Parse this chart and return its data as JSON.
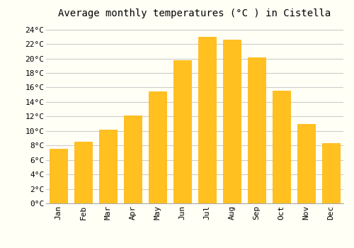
{
  "title": "Average monthly temperatures (°C ) in Cistella",
  "months": [
    "Jan",
    "Feb",
    "Mar",
    "Apr",
    "May",
    "Jun",
    "Jul",
    "Aug",
    "Sep",
    "Oct",
    "Nov",
    "Dec"
  ],
  "values": [
    7.5,
    8.5,
    10.2,
    12.1,
    15.5,
    19.8,
    23.0,
    22.6,
    20.2,
    15.6,
    11.0,
    8.3
  ],
  "bar_color": "#FFC020",
  "bar_edge_color": "#FFB000",
  "background_color": "#FFFFF5",
  "grid_color": "#CCCCCC",
  "ylim": [
    0,
    25
  ],
  "ytick_step": 2,
  "title_fontsize": 10,
  "tick_fontsize": 8,
  "font_family": "monospace"
}
